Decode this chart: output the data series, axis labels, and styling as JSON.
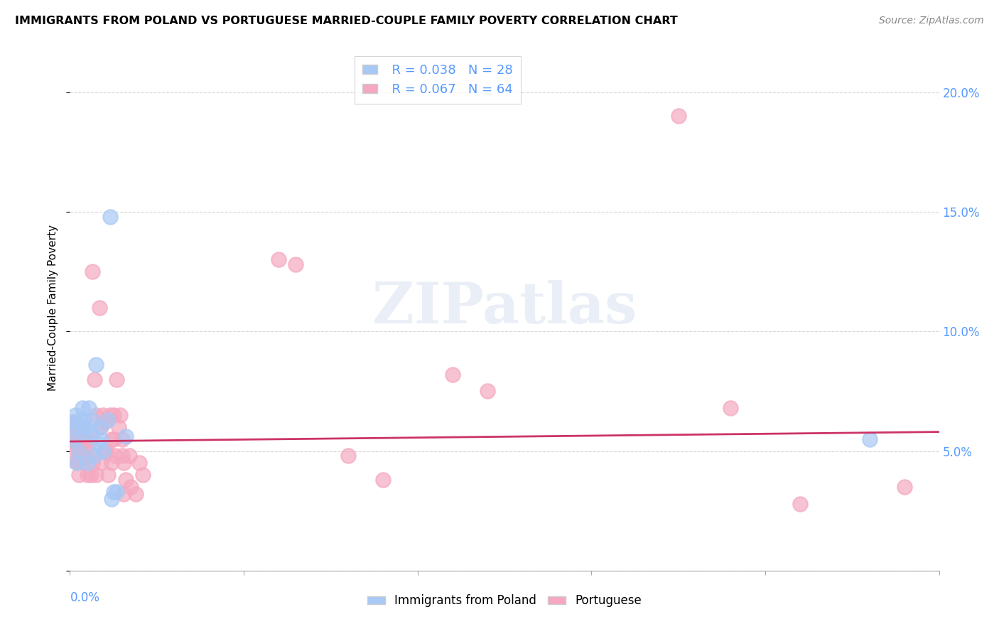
{
  "title": "IMMIGRANTS FROM POLAND VS PORTUGUESE MARRIED-COUPLE FAMILY POVERTY CORRELATION CHART",
  "source": "Source: ZipAtlas.com",
  "ylabel": "Married-Couple Family Poverty",
  "xlim": [
    0.0,
    0.5
  ],
  "ylim": [
    0.0,
    0.22
  ],
  "legend_r1": "R = 0.038",
  "legend_n1": "N = 28",
  "legend_r2": "R = 0.067",
  "legend_n2": "N = 64",
  "poland_color": "#a8c8f5",
  "portuguese_color": "#f5a8c0",
  "trendline_color": "#cc3366",
  "background_color": "#ffffff",
  "grid_color": "#cccccc",
  "right_axis_color": "#5599ff",
  "watermark": "ZIPatlas",
  "poland_points": [
    [
      0.001,
      0.062
    ],
    [
      0.002,
      0.055
    ],
    [
      0.003,
      0.065
    ],
    [
      0.004,
      0.06
    ],
    [
      0.004,
      0.045
    ],
    [
      0.005,
      0.05
    ],
    [
      0.006,
      0.063
    ],
    [
      0.007,
      0.068
    ],
    [
      0.008,
      0.058
    ],
    [
      0.008,
      0.063
    ],
    [
      0.009,
      0.06
    ],
    [
      0.01,
      0.045
    ],
    [
      0.011,
      0.068
    ],
    [
      0.012,
      0.058
    ],
    [
      0.013,
      0.063
    ],
    [
      0.014,
      0.048
    ],
    [
      0.015,
      0.086
    ],
    [
      0.016,
      0.053
    ],
    [
      0.017,
      0.06
    ],
    [
      0.018,
      0.055
    ],
    [
      0.019,
      0.05
    ],
    [
      0.022,
      0.063
    ],
    [
      0.023,
      0.148
    ],
    [
      0.024,
      0.03
    ],
    [
      0.025,
      0.033
    ],
    [
      0.027,
      0.033
    ],
    [
      0.032,
      0.056
    ],
    [
      0.46,
      0.055
    ]
  ],
  "portuguese_points": [
    [
      0.001,
      0.06
    ],
    [
      0.001,
      0.052
    ],
    [
      0.002,
      0.062
    ],
    [
      0.002,
      0.046
    ],
    [
      0.003,
      0.058
    ],
    [
      0.003,
      0.053
    ],
    [
      0.004,
      0.053
    ],
    [
      0.004,
      0.046
    ],
    [
      0.005,
      0.046
    ],
    [
      0.005,
      0.04
    ],
    [
      0.006,
      0.057
    ],
    [
      0.006,
      0.051
    ],
    [
      0.007,
      0.048
    ],
    [
      0.007,
      0.06
    ],
    [
      0.008,
      0.045
    ],
    [
      0.008,
      0.056
    ],
    [
      0.009,
      0.05
    ],
    [
      0.01,
      0.04
    ],
    [
      0.01,
      0.055
    ],
    [
      0.011,
      0.05
    ],
    [
      0.012,
      0.04
    ],
    [
      0.012,
      0.055
    ],
    [
      0.013,
      0.045
    ],
    [
      0.013,
      0.125
    ],
    [
      0.014,
      0.08
    ],
    [
      0.015,
      0.065
    ],
    [
      0.015,
      0.04
    ],
    [
      0.017,
      0.11
    ],
    [
      0.018,
      0.06
    ],
    [
      0.018,
      0.045
    ],
    [
      0.019,
      0.065
    ],
    [
      0.02,
      0.062
    ],
    [
      0.02,
      0.05
    ],
    [
      0.021,
      0.05
    ],
    [
      0.022,
      0.04
    ],
    [
      0.023,
      0.065
    ],
    [
      0.024,
      0.055
    ],
    [
      0.024,
      0.045
    ],
    [
      0.025,
      0.055
    ],
    [
      0.025,
      0.065
    ],
    [
      0.026,
      0.048
    ],
    [
      0.027,
      0.08
    ],
    [
      0.028,
      0.06
    ],
    [
      0.029,
      0.065
    ],
    [
      0.03,
      0.055
    ],
    [
      0.03,
      0.048
    ],
    [
      0.031,
      0.045
    ],
    [
      0.031,
      0.032
    ],
    [
      0.032,
      0.038
    ],
    [
      0.034,
      0.048
    ],
    [
      0.035,
      0.035
    ],
    [
      0.038,
      0.032
    ],
    [
      0.04,
      0.045
    ],
    [
      0.042,
      0.04
    ],
    [
      0.12,
      0.13
    ],
    [
      0.13,
      0.128
    ],
    [
      0.16,
      0.048
    ],
    [
      0.18,
      0.038
    ],
    [
      0.22,
      0.082
    ],
    [
      0.24,
      0.075
    ],
    [
      0.35,
      0.19
    ],
    [
      0.38,
      0.068
    ],
    [
      0.42,
      0.028
    ],
    [
      0.48,
      0.035
    ]
  ],
  "trendline_x": [
    0.0,
    0.5
  ],
  "trendline_y": [
    0.054,
    0.058
  ]
}
